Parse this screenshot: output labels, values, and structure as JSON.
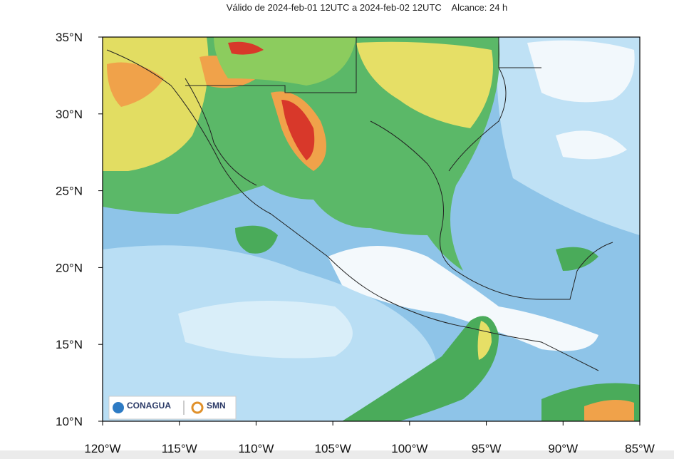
{
  "header": {
    "title": "Válido de 2024-feb-01 12UTC a 2024-feb-02 12UTC    Alcance: 24 h"
  },
  "axes": {
    "lat_ticks": [
      {
        "value": 35,
        "label": "35°N"
      },
      {
        "value": 30,
        "label": "30°N"
      },
      {
        "value": 25,
        "label": "25°N"
      },
      {
        "value": 20,
        "label": "20°N"
      },
      {
        "value": 15,
        "label": "15°N"
      },
      {
        "value": 10,
        "label": "10°N"
      }
    ],
    "lon_ticks": [
      {
        "value": -120,
        "label": "120°W"
      },
      {
        "value": -115,
        "label": "115°W"
      },
      {
        "value": -110,
        "label": "110°W"
      },
      {
        "value": -105,
        "label": "105°W"
      },
      {
        "value": -100,
        "label": "100°W"
      },
      {
        "value": -95,
        "label": "95°W"
      },
      {
        "value": -90,
        "label": "90°W"
      },
      {
        "value": -85,
        "label": "85°W"
      }
    ]
  },
  "logos": {
    "conagua": "CONAGUA",
    "smn": "SMN"
  }
}
